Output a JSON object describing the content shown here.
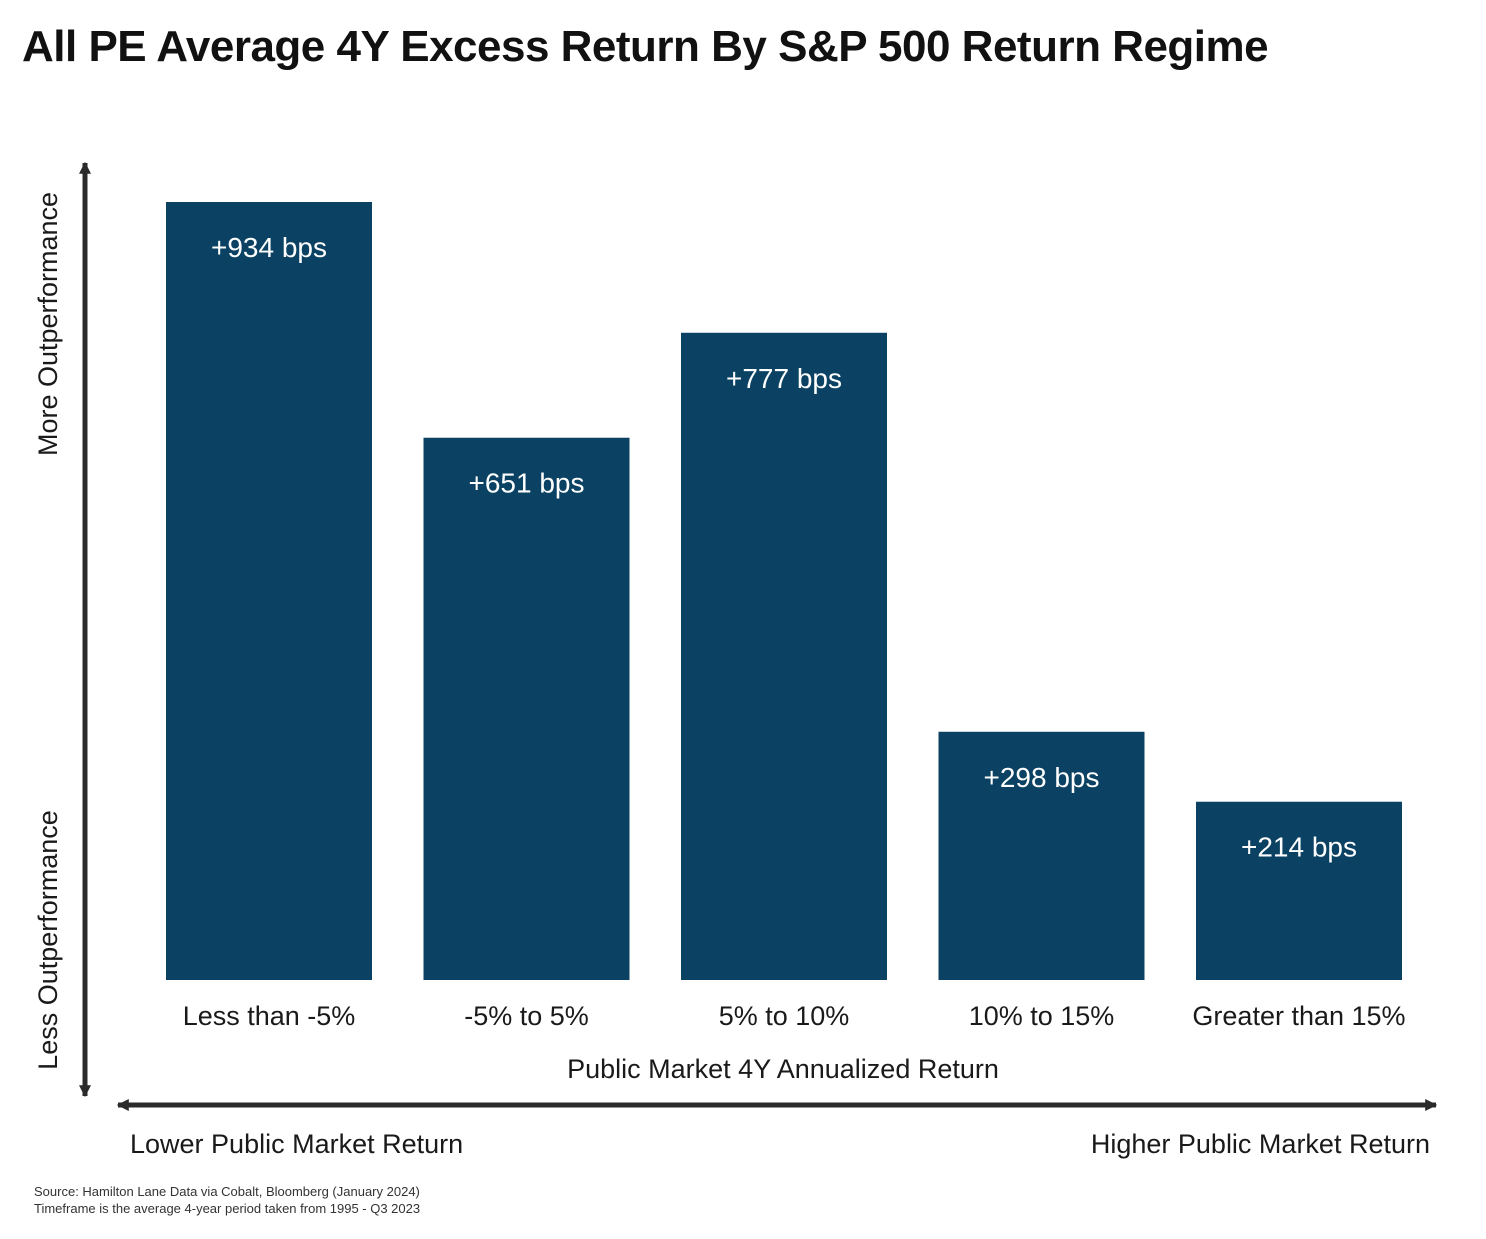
{
  "title": "All PE Average 4Y Excess Return By S&P 500 Return Regime",
  "colors": {
    "bar": "#0b4263",
    "bar_label": "#ffffff",
    "axis": "#2b2b2b",
    "text": "#1a1a1a"
  },
  "chart_data": {
    "type": "bar",
    "title": "All PE Average 4Y Excess Return By S&P 500 Return Regime",
    "categories": [
      "Less than -5%",
      "-5% to 5%",
      "5% to 10%",
      "10% to 15%",
      "Greater than 15%"
    ],
    "values": [
      934,
      651,
      777,
      298,
      214
    ],
    "value_labels": [
      "+934 bps",
      "+651 bps",
      "+777 bps",
      "+298 bps",
      "+214 bps"
    ],
    "unit": "bps",
    "xlabel": "Public Market 4Y Annualized Return",
    "ylabel_top": "More Outperformance",
    "ylabel_bottom": "Less Outperformance",
    "x_arrow_left_label": "Lower Public Market Return",
    "x_arrow_right_label": "Higher Public Market Return",
    "ylim": [
      0,
      934
    ],
    "grid": false,
    "legend": "none"
  },
  "footnotes": [
    "Source: Hamilton Lane Data via Cobalt, Bloomberg (January 2024)",
    "Timeframe is the average 4-year period taken from 1995 - Q3 2023"
  ]
}
